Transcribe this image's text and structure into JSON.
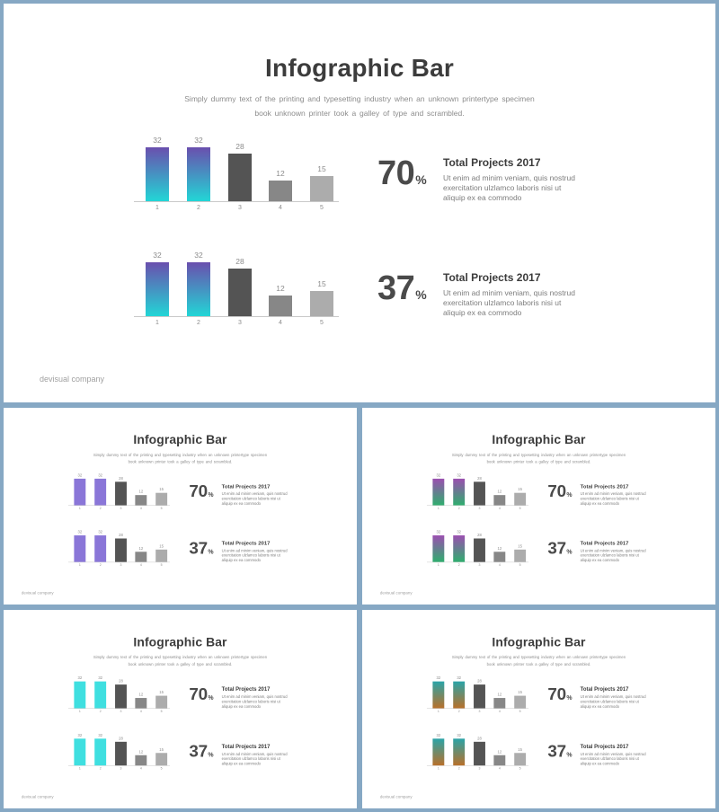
{
  "slide": {
    "title": "Infographic Bar",
    "subtitle": "Simply dummy text of the printing and typesetting industry when an unknown printertype specimen book unknown printer took a galley of type and scrambled.",
    "footer": "devisual company",
    "stats": [
      {
        "percent": "70",
        "unit": "%",
        "title": "Total Projects 2017",
        "body": "Ut enim ad minim veniam, quis nostrud exercitation ulzlamco laboris nisi ut aliquip ex ea commodo"
      },
      {
        "percent": "37",
        "unit": "%",
        "title": "Total Projects 2017",
        "body": "Ut enim ad minim veniam, quis nostrud exercitation ulzlamco laboris nisi ut aliquip ex ea commodo"
      }
    ]
  },
  "chart_data": [
    {
      "type": "bar",
      "categories": [
        "1",
        "2",
        "3",
        "4",
        "5"
      ],
      "values": [
        32,
        32,
        28,
        12,
        15
      ],
      "title": "",
      "xlabel": "",
      "ylabel": "",
      "ylim": [
        0,
        32
      ],
      "grid": false
    },
    {
      "type": "bar",
      "categories": [
        "1",
        "2",
        "3",
        "4",
        "5"
      ],
      "values": [
        32,
        32,
        28,
        12,
        15
      ],
      "title": "",
      "xlabel": "",
      "ylabel": "",
      "ylim": [
        0,
        32
      ],
      "grid": false
    }
  ],
  "colors": {
    "dark_bar": "#545454",
    "mid_bar": "#878787",
    "light_bar": "#acacac",
    "frame_background": "#86a8c4"
  },
  "variants": [
    {
      "name": "purple-cyan-gradient",
      "accent_top": "#6a4fae",
      "accent_bottom": "#22d6d6"
    },
    {
      "name": "purple",
      "accent_top": "#8a76d8",
      "accent_bottom": "#8a76d8"
    },
    {
      "name": "purple-green-gradient",
      "accent_top": "#9b4fb0",
      "accent_bottom": "#2fae6e"
    },
    {
      "name": "cyan",
      "accent_top": "#3fdfe0",
      "accent_bottom": "#3fdfe0"
    },
    {
      "name": "teal-orange-gradient",
      "accent_top": "#2aa4a8",
      "accent_bottom": "#b8702a"
    }
  ]
}
